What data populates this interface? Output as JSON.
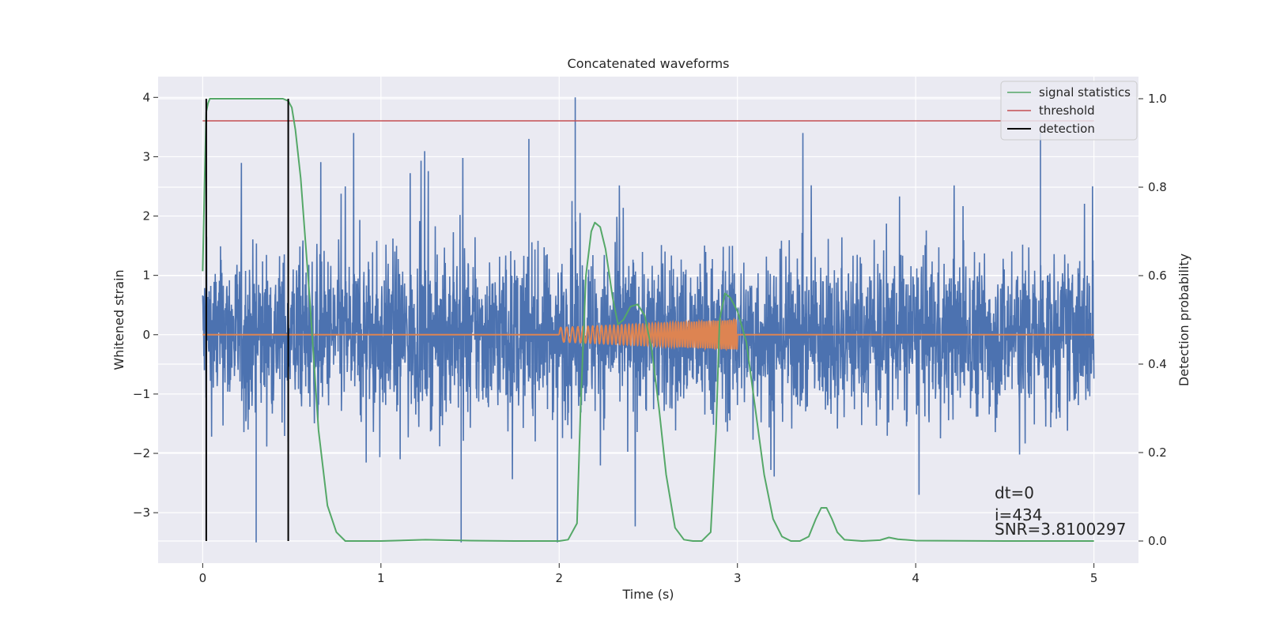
{
  "chart_data": {
    "type": "line",
    "title": "Concatenated waveforms",
    "xlabel": "Time (s)",
    "ylabel": "Whitened strain",
    "y2label": "Detection probability",
    "xlim": [
      -0.25,
      5.25
    ],
    "ylim": [
      -3.85,
      4.35
    ],
    "y2lim": [
      -0.05,
      1.05
    ],
    "grid": true,
    "legend_position": "top-right",
    "x_ticks": [
      {
        "v": 0,
        "label": "0"
      },
      {
        "v": 1,
        "label": "1"
      },
      {
        "v": 2,
        "label": "2"
      },
      {
        "v": 3,
        "label": "3"
      },
      {
        "v": 4,
        "label": "4"
      },
      {
        "v": 5,
        "label": "5"
      }
    ],
    "y_ticks": [
      {
        "v": 4,
        "label": "4"
      },
      {
        "v": 3,
        "label": "3"
      },
      {
        "v": 2,
        "label": "2"
      },
      {
        "v": 1,
        "label": "1"
      },
      {
        "v": 0,
        "label": "0"
      },
      {
        "v": -1,
        "label": "−1"
      },
      {
        "v": -2,
        "label": "−2"
      },
      {
        "v": -3,
        "label": "−3"
      }
    ],
    "y2_ticks": [
      {
        "v": 1.0,
        "label": "1.0"
      },
      {
        "v": 0.8,
        "label": "0.8"
      },
      {
        "v": 0.6,
        "label": "0.6"
      },
      {
        "v": 0.4,
        "label": "0.4"
      },
      {
        "v": 0.2,
        "label": "0.2"
      },
      {
        "v": 0.0,
        "label": "0.0"
      }
    ],
    "colors": {
      "strain": "#4c72b0",
      "template": "#dd8452",
      "signal": "#55a868",
      "threshold": "#c44e52",
      "detection": "#000000",
      "axes_bg": "#eaeaf2",
      "grid": "#ffffff"
    },
    "series": [
      {
        "name": "",
        "kind": "noise",
        "axis": "left",
        "x_range": [
          0,
          5
        ],
        "envelope_abs": 1.4,
        "peak_max": 4.0,
        "peak_min": -3.5
      },
      {
        "name": "",
        "kind": "chirp",
        "axis": "left",
        "x": [
          0,
          2.0,
          3.0,
          5
        ],
        "amplitude": [
          0,
          0.12,
          0.25,
          0
        ],
        "active_range": [
          2.0,
          3.0
        ]
      },
      {
        "name": "signal statistics",
        "axis": "right",
        "x": [
          0,
          0.01,
          0.02,
          0.03,
          0.04,
          0.06,
          0.1,
          0.2,
          0.3,
          0.4,
          0.45,
          0.48,
          0.5,
          0.52,
          0.55,
          0.6,
          0.65,
          0.7,
          0.75,
          0.8,
          1.0,
          1.25,
          1.5,
          1.75,
          1.9,
          2.0,
          2.05,
          2.1,
          2.12,
          2.15,
          2.18,
          2.2,
          2.23,
          2.26,
          2.3,
          2.33,
          2.36,
          2.4,
          2.44,
          2.48,
          2.52,
          2.56,
          2.6,
          2.65,
          2.7,
          2.75,
          2.8,
          2.85,
          2.88,
          2.9,
          2.93,
          2.96,
          3.0,
          3.05,
          3.1,
          3.15,
          3.2,
          3.25,
          3.3,
          3.35,
          3.4,
          3.44,
          3.47,
          3.5,
          3.53,
          3.56,
          3.6,
          3.7,
          3.8,
          3.85,
          3.9,
          4.0,
          4.5,
          5.0
        ],
        "y": [
          0.61,
          0.8,
          0.97,
          0.99,
          1.0,
          1.0,
          1.0,
          1.0,
          1.0,
          1.0,
          1.0,
          0.995,
          0.98,
          0.93,
          0.82,
          0.55,
          0.25,
          0.08,
          0.02,
          0.0,
          0.0,
          0.003,
          0.001,
          0.0,
          0.0,
          0.0,
          0.003,
          0.04,
          0.3,
          0.6,
          0.7,
          0.72,
          0.71,
          0.66,
          0.55,
          0.49,
          0.5,
          0.53,
          0.535,
          0.51,
          0.43,
          0.3,
          0.15,
          0.03,
          0.003,
          0.0,
          0.0,
          0.02,
          0.25,
          0.5,
          0.56,
          0.55,
          0.52,
          0.45,
          0.3,
          0.15,
          0.05,
          0.01,
          0.0,
          0.0,
          0.01,
          0.05,
          0.075,
          0.075,
          0.05,
          0.02,
          0.003,
          0.0,
          0.002,
          0.008,
          0.004,
          0.001,
          0.0,
          0.0
        ]
      },
      {
        "name": "threshold",
        "axis": "right",
        "x": [
          0,
          5
        ],
        "y": [
          0.95,
          0.95
        ]
      },
      {
        "name": "detection",
        "axis": "right",
        "lines_x": [
          0.02,
          0.48
        ],
        "y_range": [
          0,
          1
        ]
      }
    ],
    "annotations": {
      "dt": "dt=0",
      "i": "i=434",
      "snr": "SNR=3.8100297"
    }
  }
}
